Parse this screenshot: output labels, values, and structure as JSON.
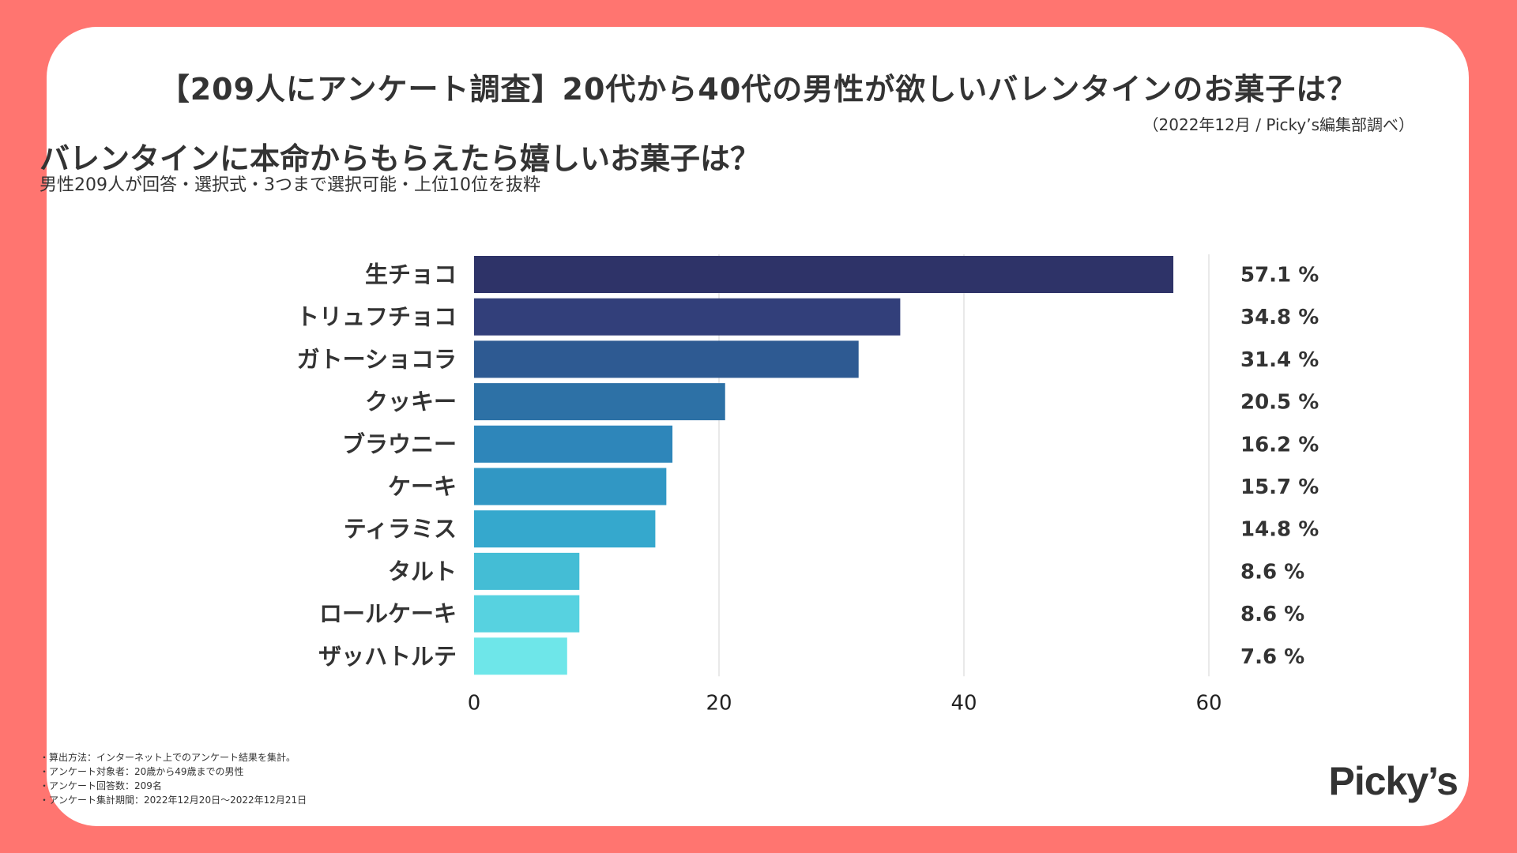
{
  "header": {
    "title": "【209人にアンケート調査】20代から40代の男性が欲しいバレンタインのお菓子は？",
    "note": "（2022年12月 / Picky’s編集部調べ）"
  },
  "chart_data": {
    "type": "bar",
    "orientation": "horizontal",
    "title": "バレンタインに本命からもらえたら嬉しいお菓子は？",
    "subtitle": "男性209人が回答・選択式・3つまで選択可能・上位10位を抜粋",
    "categories": [
      "生チョコ",
      "トリュフチョコ",
      "ガトーショコラ",
      "クッキー",
      "ブラウニー",
      "ケーキ",
      "ティラミス",
      "タルト",
      "ロールケーキ",
      "ザッハトルテ"
    ],
    "values": [
      57.1,
      34.8,
      31.4,
      20.5,
      16.2,
      15.7,
      14.8,
      8.6,
      8.6,
      7.6
    ],
    "value_labels": [
      "57.1 %",
      "34.8 %",
      "31.4 %",
      "20.5 %",
      "16.2 %",
      "15.7 %",
      "14.8 %",
      "8.6 %",
      "8.6 %",
      "7.6 %"
    ],
    "xlim": [
      0,
      60
    ],
    "xticks": [
      0,
      20,
      40,
      60
    ],
    "grid": true,
    "colors": [
      "#2e3368",
      "#323f7a",
      "#2e5a92",
      "#2d71a6",
      "#2e86ba",
      "#3197c4",
      "#35a8cd",
      "#44bdd5",
      "#57d2e0",
      "#6ee6e9"
    ]
  },
  "footnotes": [
    "・算出方法：インターネット上でのアンケート結果を集計。",
    "・アンケート対象者：20歳から49歳までの男性",
    "・アンケート回答数：209名",
    "・アンケート集計期間：2022年12月20日〜2022年12月21日"
  ],
  "logo": {
    "text": "Picky’s"
  }
}
